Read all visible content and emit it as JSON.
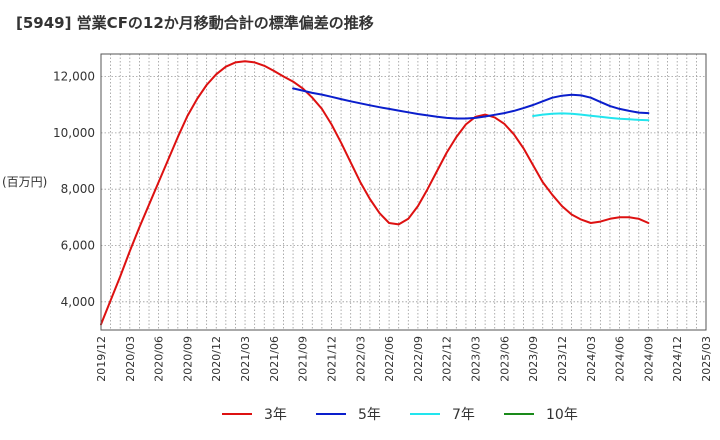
{
  "chart_data": {
    "type": "line",
    "title": "[5949]  営業CFの12か月移動合計の標準偏差の推移",
    "ylabel": "(百万円)",
    "xlabel": "",
    "x_ticks": [
      "2019/12",
      "2020/03",
      "2020/06",
      "2020/09",
      "2020/12",
      "2021/03",
      "2021/06",
      "2021/09",
      "2021/12",
      "2022/03",
      "2022/06",
      "2022/09",
      "2022/12",
      "2023/03",
      "2023/06",
      "2023/09",
      "2023/12",
      "2024/03",
      "2024/06",
      "2024/09",
      "2024/12",
      "2025/03"
    ],
    "xlim": [
      "2019/12",
      "2025/03"
    ],
    "y_ticks": [
      4000,
      6000,
      8000,
      10000,
      12000
    ],
    "y_tick_labels": [
      "4,000",
      "6,000",
      "8,000",
      "10,000",
      "12,000"
    ],
    "ylim": [
      3000,
      12800
    ],
    "grid": "dotted",
    "legend_position": "bottom",
    "series": [
      {
        "name": "3年",
        "color": "#dd1111",
        "x": [
          "2019/12",
          "2020/01",
          "2020/02",
          "2020/03",
          "2020/04",
          "2020/05",
          "2020/06",
          "2020/07",
          "2020/08",
          "2020/09",
          "2020/10",
          "2020/11",
          "2020/12",
          "2021/01",
          "2021/02",
          "2021/03",
          "2021/04",
          "2021/05",
          "2021/06",
          "2021/07",
          "2021/08",
          "2021/09",
          "2021/10",
          "2021/11",
          "2021/12",
          "2022/01",
          "2022/02",
          "2022/03",
          "2022/04",
          "2022/05",
          "2022/06",
          "2022/07",
          "2022/08",
          "2022/09",
          "2022/10",
          "2022/11",
          "2022/12",
          "2023/01",
          "2023/02",
          "2023/03",
          "2023/04",
          "2023/05",
          "2023/06",
          "2023/07",
          "2023/08",
          "2023/09",
          "2023/10",
          "2023/11",
          "2023/12",
          "2024/01",
          "2024/02",
          "2024/03",
          "2024/04",
          "2024/05",
          "2024/06",
          "2024/07",
          "2024/08",
          "2024/09"
        ],
        "values": [
          3200,
          4050,
          4900,
          5800,
          6650,
          7450,
          8250,
          9050,
          9850,
          10600,
          11200,
          11700,
          12080,
          12350,
          12500,
          12540,
          12500,
          12380,
          12200,
          12000,
          11820,
          11580,
          11250,
          10850,
          10300,
          9650,
          8950,
          8250,
          7650,
          7150,
          6800,
          6750,
          6950,
          7400,
          8000,
          8650,
          9300,
          9850,
          10300,
          10570,
          10650,
          10550,
          10320,
          9950,
          9450,
          8850,
          8250,
          7800,
          7400,
          7100,
          6920,
          6800,
          6850,
          6950,
          7000,
          7000,
          6950,
          6800
        ],
        "values_note": ""
      },
      {
        "name": "5年",
        "color": "#0a1ecc",
        "x": [
          "2021/08",
          "2021/09",
          "2021/10",
          "2021/11",
          "2021/12",
          "2022/01",
          "2022/02",
          "2022/03",
          "2022/04",
          "2022/05",
          "2022/06",
          "2022/07",
          "2022/08",
          "2022/09",
          "2022/10",
          "2022/11",
          "2022/12",
          "2023/01",
          "2023/02",
          "2023/03",
          "2023/04",
          "2023/05",
          "2023/06",
          "2023/07",
          "2023/08",
          "2023/09",
          "2023/10",
          "2023/11",
          "2023/12",
          "2024/01",
          "2024/02",
          "2024/03",
          "2024/04",
          "2024/05",
          "2024/06",
          "2024/07",
          "2024/08",
          "2024/09"
        ],
        "values": [
          11580,
          11500,
          11420,
          11360,
          11280,
          11200,
          11120,
          11050,
          10980,
          10910,
          10850,
          10790,
          10730,
          10670,
          10620,
          10570,
          10530,
          10510,
          10510,
          10530,
          10580,
          10640,
          10700,
          10780,
          10880,
          10990,
          11120,
          11250,
          11320,
          11350,
          11330,
          11250,
          11100,
          10950,
          10850,
          10780,
          10720,
          10700
        ],
        "values_note": ""
      },
      {
        "name": "7年",
        "color": "#22e5ee",
        "x": [
          "2023/09",
          "2023/10",
          "2023/11",
          "2023/12",
          "2024/01",
          "2024/02",
          "2024/03",
          "2024/04",
          "2024/05",
          "2024/06",
          "2024/07",
          "2024/08",
          "2024/09"
        ],
        "values": [
          10600,
          10650,
          10680,
          10690,
          10680,
          10650,
          10610,
          10570,
          10530,
          10500,
          10480,
          10460,
          10450
        ],
        "values_note": ""
      },
      {
        "name": "10年",
        "color": "#1a8a1a",
        "x": [],
        "values": []
      }
    ]
  }
}
